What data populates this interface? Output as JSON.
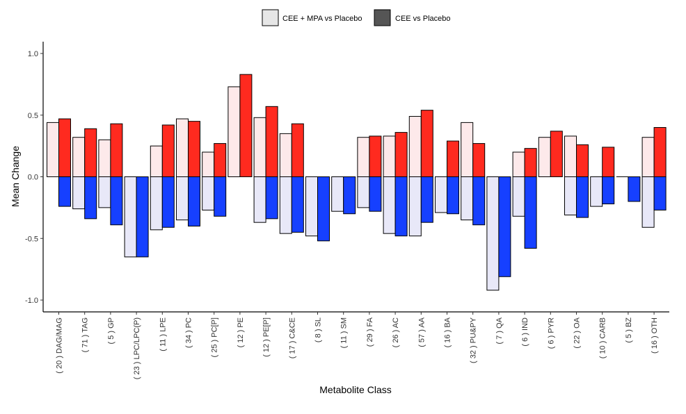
{
  "chart_data": {
    "type": "bar",
    "xlabel": "Metabolite Class",
    "ylabel": "Mean Change",
    "ylim": [
      -1.1,
      1.1
    ],
    "yticks": [
      -1.0,
      -0.5,
      0.0,
      0.5,
      1.0
    ],
    "ytick_labels": [
      "-1.0",
      "-0.5",
      "0.0",
      "0.5",
      "1.0"
    ],
    "grid": false,
    "legend_position": "top",
    "categories": [
      "( 20 ) DAG/MAG",
      "( 71 ) TAG",
      "( 5 ) GP",
      "( 23 ) LPC/LPC(P)",
      "( 11 ) LPE",
      "( 34 ) PC",
      "( 25 ) PC[P]",
      "( 12 ) PE",
      "( 12 ) PE[P]",
      "( 17 ) C&CE",
      "( 8 ) SL",
      "( 11 ) SM",
      "( 29 ) FA",
      "( 26 ) AC",
      "( 57 ) AA",
      "( 16 ) BA",
      "( 32 ) PU&PY",
      "( 7 ) QA",
      "( 6 ) IND",
      "( 6 ) PYR",
      "( 22 ) OA",
      "( 10 ) CARB",
      "( 5 ) BZ",
      "( 16 ) OTH"
    ],
    "series": [
      {
        "name": "CEE + MPA vs Placebo",
        "legend_color": "#e6e6e6",
        "positive_color": "#fde9ea",
        "negative_color": "#e8e8f8",
        "positive": [
          0.44,
          0.32,
          0.3,
          0.0,
          0.25,
          0.47,
          0.2,
          0.73,
          0.48,
          0.35,
          0.0,
          0.0,
          0.32,
          0.33,
          0.49,
          0.0,
          0.44,
          0.0,
          0.2,
          0.32,
          0.33,
          0.0,
          0.0,
          0.32
        ],
        "negative": [
          0.0,
          -0.26,
          -0.25,
          -0.65,
          -0.43,
          -0.35,
          -0.27,
          0.0,
          -0.37,
          -0.46,
          -0.48,
          -0.28,
          -0.25,
          -0.46,
          -0.48,
          -0.29,
          -0.35,
          -0.92,
          -0.32,
          0.0,
          -0.31,
          -0.24,
          0.0,
          -0.41
        ]
      },
      {
        "name": "CEE vs Placebo",
        "legend_color": "#555555",
        "positive_color": "#ff2a1f",
        "negative_color": "#1640ff",
        "positive": [
          0.47,
          0.39,
          0.43,
          0.0,
          0.42,
          0.45,
          0.27,
          0.83,
          0.57,
          0.43,
          0.0,
          0.0,
          0.33,
          0.36,
          0.54,
          0.29,
          0.27,
          0.0,
          0.23,
          0.37,
          0.26,
          0.24,
          0.0,
          0.4
        ],
        "negative": [
          -0.24,
          -0.34,
          -0.39,
          -0.65,
          -0.41,
          -0.4,
          -0.32,
          0.0,
          -0.34,
          -0.45,
          -0.52,
          -0.3,
          -0.28,
          -0.48,
          -0.37,
          -0.3,
          -0.39,
          -0.81,
          -0.58,
          0.0,
          -0.33,
          -0.22,
          -0.2,
          -0.27
        ]
      }
    ]
  }
}
